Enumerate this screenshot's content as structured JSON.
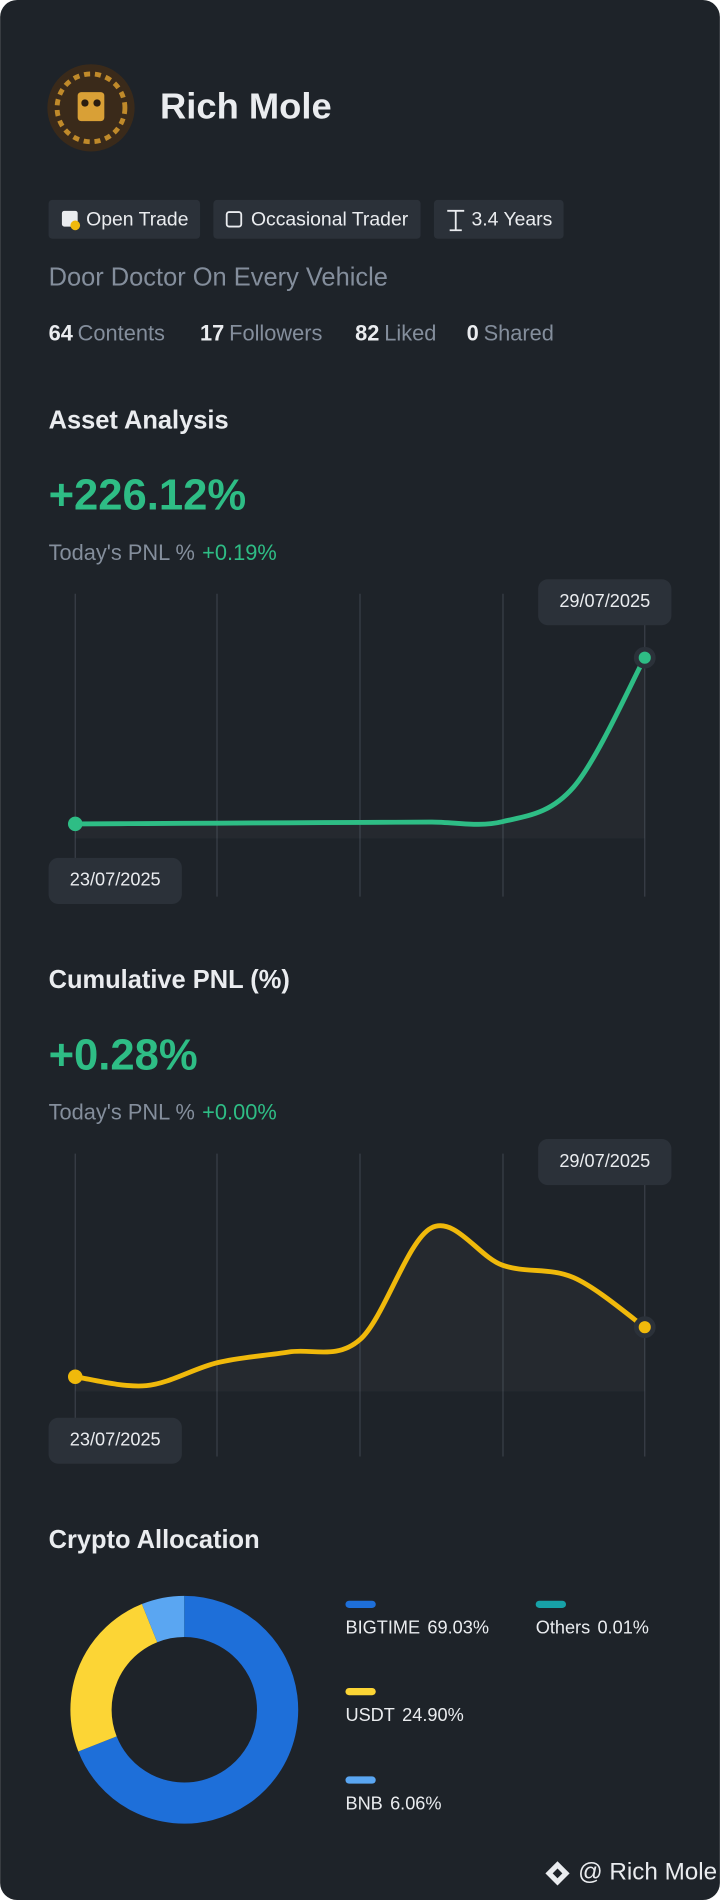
{
  "profile": {
    "name": "Rich Mole",
    "tags": [
      "Open Trade",
      "Occasional Trader",
      "3.4 Years"
    ],
    "bio": "Door Doctor On Every Vehicle",
    "stats": [
      {
        "value": 64,
        "label": "Contents"
      },
      {
        "value": 17,
        "label": "Followers"
      },
      {
        "value": 82,
        "label": "Liked"
      },
      {
        "value": 0,
        "label": "Shared"
      }
    ]
  },
  "chart_data": [
    {
      "type": "line",
      "title": "Asset Analysis",
      "headline": "+226.12%",
      "pnl_label": "Today's PNL %",
      "pnl_value": "+0.19%",
      "categories": [
        "23/07/2025",
        null,
        null,
        null,
        null,
        null,
        null,
        null,
        "29/07/2025"
      ],
      "series": [
        {
          "color": "#2ebd85",
          "values": [
            0,
            0.5,
            1,
            1.5,
            2,
            2.5,
            3,
            50,
            226
          ]
        }
      ],
      "ylim": [
        -99,
        313
      ]
    },
    {
      "type": "line",
      "title": "Cumulative PNL (%)",
      "headline": "+0.28%",
      "pnl_label": "Today's PNL %",
      "pnl_value": "+0.00%",
      "categories": [
        "23/07/2025",
        null,
        null,
        null,
        null,
        null,
        null,
        null,
        "29/07/2025"
      ],
      "series": [
        {
          "color": "#f0b90b",
          "values": [
            0,
            -0.05,
            0.08,
            0.14,
            0.21,
            0.84,
            0.63,
            0.56,
            0.28
          ]
        }
      ],
      "ylim": [
        -0.45,
        1.26
      ]
    },
    {
      "type": "pie",
      "title": "Crypto Allocation",
      "categories": [
        "BIGTIME",
        "USDT",
        "BNB",
        "Others"
      ],
      "values": [
        69.03,
        24.9,
        6.06,
        0.01
      ],
      "value_labels": [
        "69.03%",
        "24.90%",
        "6.06%",
        "0.01%"
      ],
      "colors": [
        "#1e6fd9",
        "#fcd535",
        "#5aa6f2",
        "#17a2a8"
      ]
    }
  ],
  "footer": "@ Rich Mole"
}
